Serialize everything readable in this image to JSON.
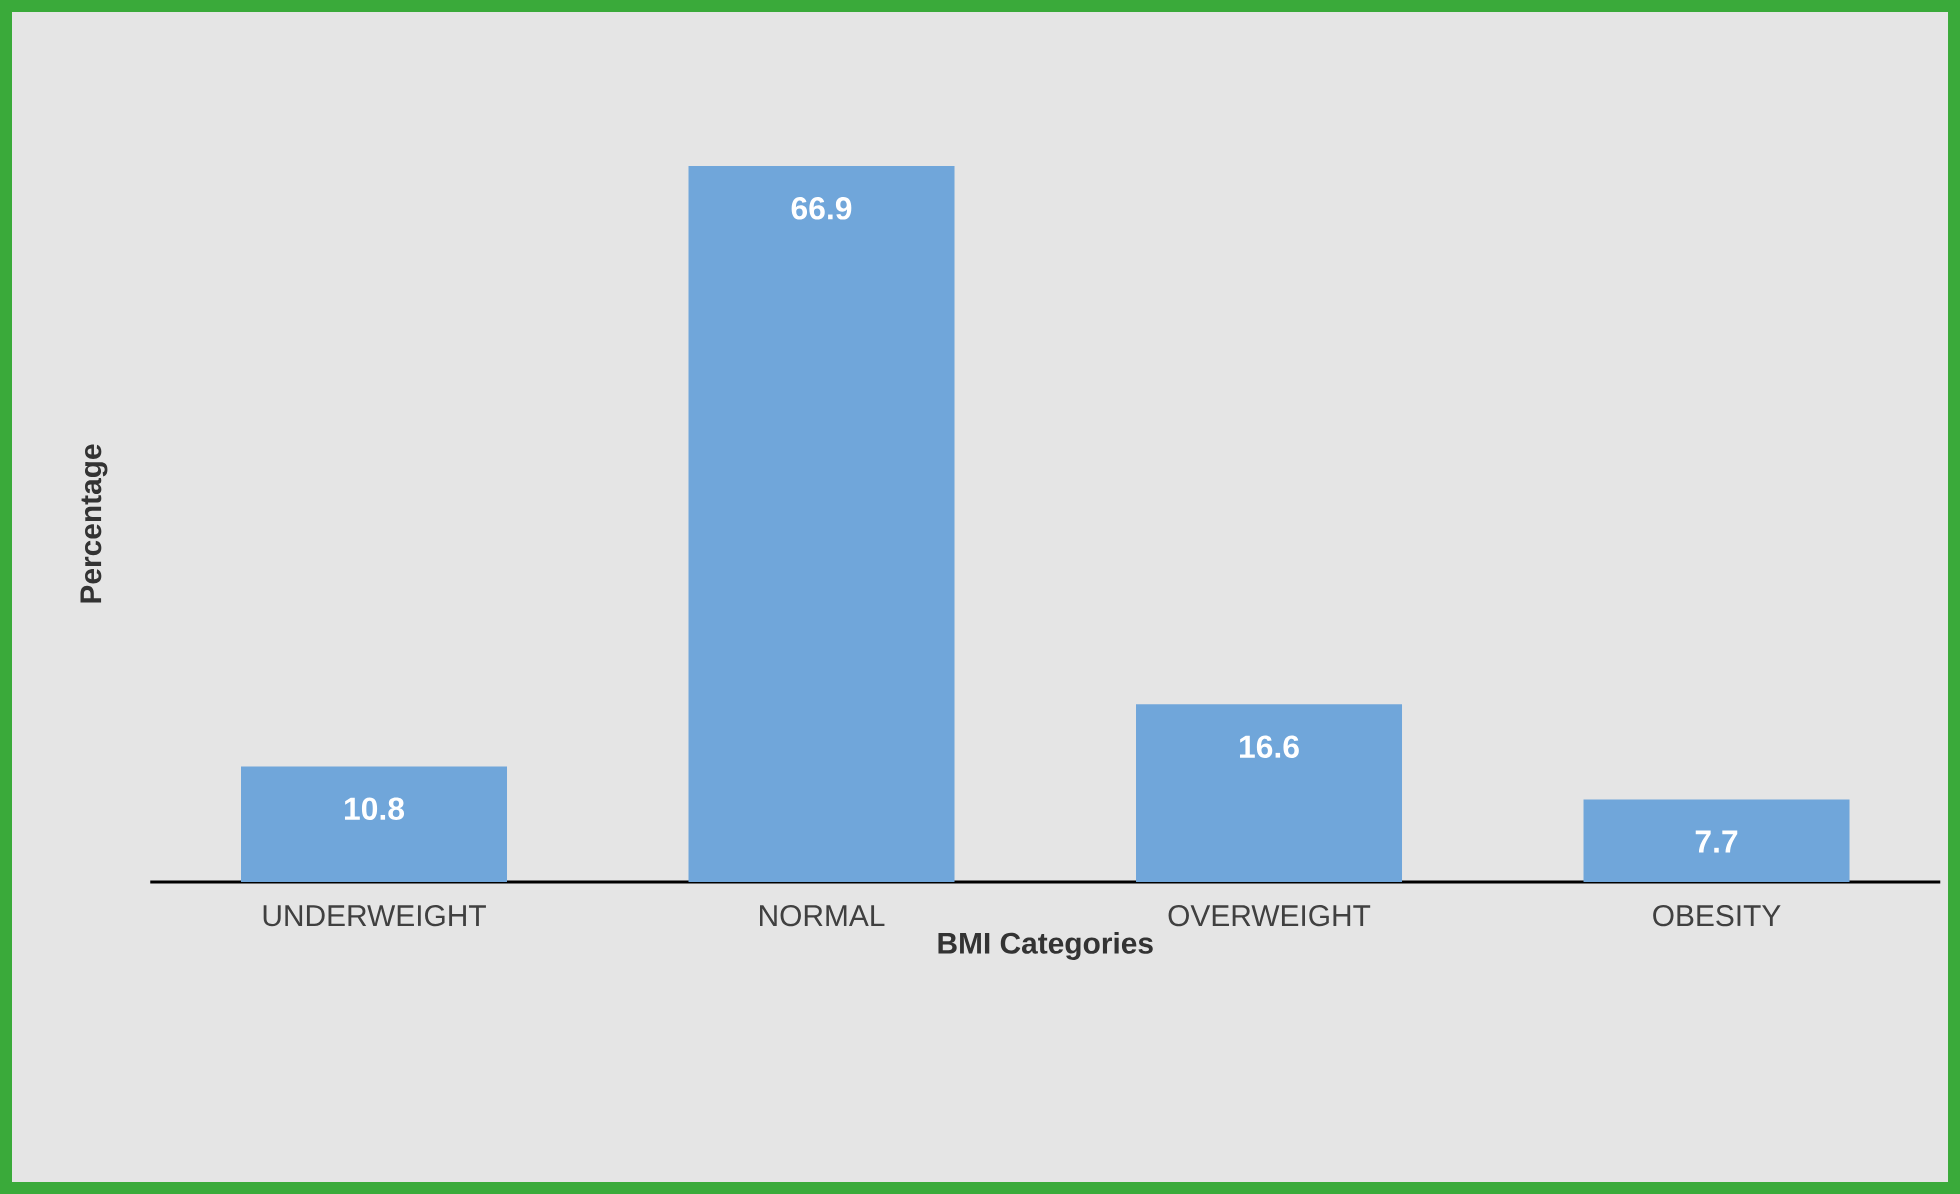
{
  "chart_data": {
    "type": "bar",
    "categories": [
      "UNDERWEIGHT",
      "NORMAL",
      "OVERWEIGHT",
      "OBESITY"
    ],
    "values": [
      10.8,
      66.9,
      16.6,
      7.7
    ],
    "color": "#70a6da",
    "xlabel": "BMI Categories",
    "ylabel": "Percentage",
    "data_labels": true
  }
}
